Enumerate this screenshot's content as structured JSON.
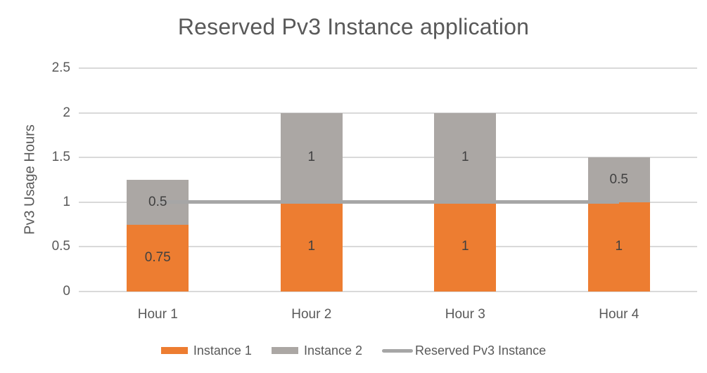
{
  "chart_data": {
    "type": "bar",
    "subtype": "stacked-with-line-overlay",
    "title": "Reserved Pv3 Instance application",
    "xlabel": "",
    "ylabel": "Pv3 Usage Hours",
    "categories": [
      "Hour 1",
      "Hour 2",
      "Hour 3",
      "Hour 4"
    ],
    "series": [
      {
        "name": "Instance 1",
        "type": "bar",
        "color": "#ED7D31",
        "values": [
          0.75,
          1,
          1,
          1
        ]
      },
      {
        "name": "Instance 2",
        "type": "bar",
        "color": "#ABA7A4",
        "values": [
          0.5,
          1,
          1,
          0.5
        ]
      },
      {
        "name": "Reserved Pv3 Instance",
        "type": "line",
        "color": "#A6A6A6",
        "values": [
          1,
          1,
          1,
          1
        ]
      }
    ],
    "data_labels": {
      "Instance 1": [
        "0.75",
        "1",
        "1",
        "1"
      ],
      "Instance 2": [
        "0.5",
        "1",
        "1",
        "0.5"
      ]
    },
    "yticks": [
      "0",
      "0.5",
      "1",
      "1.5",
      "2",
      "2.5"
    ],
    "ytick_values": [
      0,
      0.5,
      1,
      1.5,
      2,
      2.5
    ],
    "ylim": [
      0,
      2.5
    ],
    "grid": true,
    "legend_position": "bottom",
    "colors": {
      "title_text": "#595959",
      "axis_text": "#595959",
      "data_label_text": "#404040",
      "gridline": "#D9D9D9",
      "background": "#FFFFFF"
    }
  }
}
